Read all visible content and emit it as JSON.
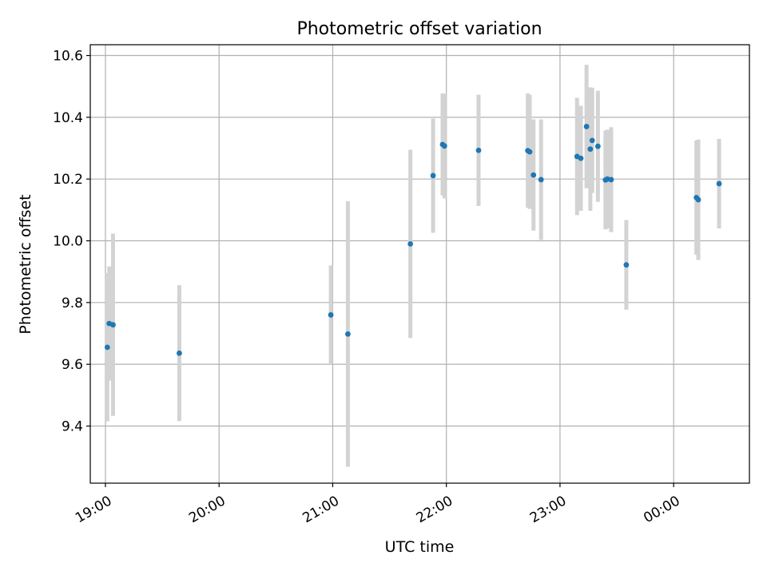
{
  "chart_data": {
    "type": "scatter",
    "title": "Photometric offset variation",
    "xlabel": "UTC time",
    "ylabel": "Photometric offset",
    "x_axis_type": "time",
    "xlim": [
      "18:52",
      "00:40"
    ],
    "ylim": [
      9.215,
      10.635
    ],
    "x_ticks": [
      "19:00",
      "20:00",
      "21:00",
      "22:00",
      "23:00",
      "00:00"
    ],
    "y_ticks": [
      "9.4",
      "9.6",
      "9.8",
      "10.0",
      "10.2",
      "10.4",
      "10.6"
    ],
    "grid": true,
    "legend": "none",
    "marker_color": "#1f77b4",
    "errorbar_color": "#d3d3d3",
    "points": [
      {
        "t": "19:01",
        "y": 9.655,
        "err": 0.24
      },
      {
        "t": "19:02",
        "y": 9.732,
        "err": 0.185
      },
      {
        "t": "19:04",
        "y": 9.728,
        "err": 0.295
      },
      {
        "t": "19:39",
        "y": 9.636,
        "err": 0.22
      },
      {
        "t": "20:59",
        "y": 9.76,
        "err": 0.16
      },
      {
        "t": "21:08",
        "y": 9.698,
        "err": 0.43
      },
      {
        "t": "21:41",
        "y": 9.99,
        "err": 0.305
      },
      {
        "t": "21:53",
        "y": 10.211,
        "err": 0.185
      },
      {
        "t": "21:58",
        "y": 10.312,
        "err": 0.165
      },
      {
        "t": "21:59",
        "y": 10.307,
        "err": 0.17
      },
      {
        "t": "22:17",
        "y": 10.293,
        "err": 0.18
      },
      {
        "t": "22:43",
        "y": 10.292,
        "err": 0.185
      },
      {
        "t": "22:44",
        "y": 10.288,
        "err": 0.185
      },
      {
        "t": "22:46",
        "y": 10.213,
        "err": 0.18
      },
      {
        "t": "22:50",
        "y": 10.198,
        "err": 0.195
      },
      {
        "t": "23:09",
        "y": 10.273,
        "err": 0.19
      },
      {
        "t": "23:11",
        "y": 10.267,
        "err": 0.17
      },
      {
        "t": "23:14",
        "y": 10.37,
        "err": 0.2
      },
      {
        "t": "23:16",
        "y": 10.297,
        "err": 0.2
      },
      {
        "t": "23:17",
        "y": 10.325,
        "err": 0.17
      },
      {
        "t": "23:20",
        "y": 10.306,
        "err": 0.18
      },
      {
        "t": "23:24",
        "y": 10.197,
        "err": 0.16
      },
      {
        "t": "23:25",
        "y": 10.2,
        "err": 0.16
      },
      {
        "t": "23:27",
        "y": 10.198,
        "err": 0.17
      },
      {
        "t": "23:35",
        "y": 9.922,
        "err": 0.145
      },
      {
        "t": "00:12",
        "y": 10.14,
        "err": 0.185
      },
      {
        "t": "00:13",
        "y": 10.133,
        "err": 0.195
      },
      {
        "t": "00:24",
        "y": 10.185,
        "err": 0.145
      }
    ]
  }
}
